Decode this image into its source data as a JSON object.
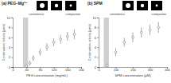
{
  "chart_data": [
    {
      "type": "scatter",
      "title": "(a) PEG–Mg²⁺",
      "x_label": "PEG concentration (mg/mL)",
      "y_label": "Condensation velocity (μm/s)",
      "x": [
        40,
        50,
        60,
        80,
        100,
        120,
        140,
        160,
        180
      ],
      "values": [
        0.2,
        0.8,
        1.8,
        3.0,
        4.0,
        5.0,
        5.6,
        6.2,
        6.6
      ],
      "errors": [
        0.3,
        0.5,
        0.6,
        0.7,
        0.8,
        0.8,
        0.9,
        0.9,
        1.0
      ],
      "band": [
        30,
        45
      ],
      "annotations": [
        "coexistence",
        "compaction"
      ],
      "xlim": [
        0,
        200
      ],
      "xticks": [
        0,
        40,
        80,
        120,
        160,
        200
      ],
      "ylim": [
        0,
        10
      ],
      "yticks": [
        0,
        2,
        4,
        6,
        8,
        10
      ],
      "color": "#7f7f7f",
      "marker": "circle"
    },
    {
      "type": "scatter",
      "title": "(b) SPM",
      "x_label": "SPM concentration (μM)",
      "y_label": "Condensation velocity (μm/s)",
      "x": [
        50,
        100,
        150,
        200,
        250,
        300,
        350
      ],
      "values": [
        0.3,
        3.0,
        5.0,
        6.0,
        7.0,
        7.5,
        8.0
      ],
      "errors": [
        0.4,
        0.8,
        0.9,
        1.0,
        1.0,
        1.1,
        1.1
      ],
      "band": [
        30,
        60
      ],
      "annotations": [
        "coexistence",
        "compaction"
      ],
      "xlim": [
        0,
        400
      ],
      "xticks": [
        0,
        100,
        200,
        300,
        400
      ],
      "ylim": [
        0,
        10
      ],
      "yticks": [
        0,
        2,
        4,
        6,
        8,
        10
      ],
      "color": "#7f7f7f",
      "marker": "circle"
    }
  ]
}
